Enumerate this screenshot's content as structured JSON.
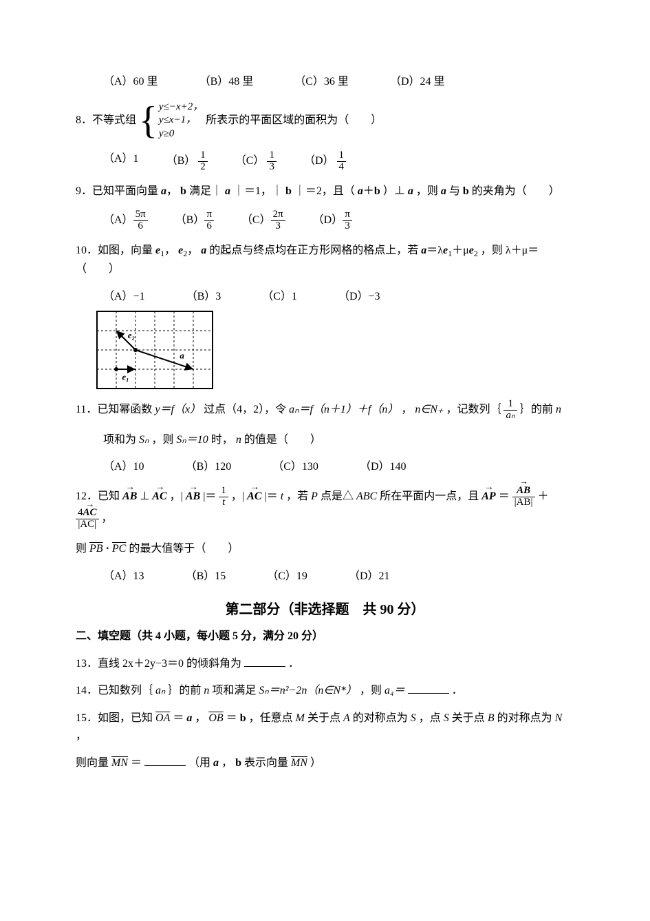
{
  "q7": {
    "options": {
      "A": "（A）60 里",
      "B": "（B）48 里",
      "C": "（C）36 里",
      "D": "（D）24 里"
    }
  },
  "q8": {
    "num": "8．不等式组",
    "sys": {
      "l1": "y≤−x+2，",
      "l2": "y≤x−1，",
      "l3": "y≥0"
    },
    "tail": "所表示的平面区域的面积为（　　）",
    "options": {
      "A_label": "（A）1",
      "B_label": "（B）",
      "B_num": "1",
      "B_den": "2",
      "C_label": "（C）",
      "C_num": "1",
      "C_den": "3",
      "D_label": "（D）",
      "D_num": "1",
      "D_den": "4"
    }
  },
  "q9": {
    "stem_a": "9．已知平面向量 ",
    "a": "a",
    "comma": "，",
    "b": "b",
    "stem_b": " 满足｜",
    "stem_c": "｜＝1，｜",
    "stem_d": "｜＝2，且（",
    "plus": "＋",
    "stem_e": "）⊥",
    "stem_f": "，则 ",
    "with": " 与 ",
    "stem_g": " 的夹角为（　　）",
    "options": {
      "A_label": "（A）",
      "A_num": "5π",
      "A_den": "6",
      "B_label": "（B）",
      "B_num": "π",
      "B_den": "6",
      "C_label": "（C）",
      "C_num": "2π",
      "C_den": "3",
      "D_label": "（D）",
      "D_num": "π",
      "D_den": "3"
    }
  },
  "q10": {
    "stem_a": "10．如图，向量 ",
    "e1": "e",
    "e1s": "1",
    "c1": "，",
    "e2": "e",
    "e2s": "2",
    "c2": "，",
    "a": "a",
    "stem_b": " 的起点与终点均在正方形网格的格点上，若 ",
    "eq_a": "a",
    "eq": "＝λ",
    "eq_e1": "e",
    "eq_e1s": "1",
    "plus": "＋μ",
    "eq_e2": "e",
    "eq_e2s": "2",
    "stem_c": "，则 λ＋μ＝（　　）",
    "options": {
      "A": "（A）−1",
      "B": "（B）3",
      "C": "（C）1",
      "D": "（D）−3"
    },
    "grid": {
      "cols": 6,
      "rows": 4,
      "cell": 28,
      "border_color": "#000",
      "grid_color": "#000",
      "labels": {
        "e1": "e₁",
        "e2": "e₂",
        "a": "a"
      },
      "arrows": [
        {
          "from": [
            1,
            3
          ],
          "to": [
            2,
            3
          ],
          "label": "e1",
          "lx": 1.3,
          "ly": 3.55
        },
        {
          "from": [
            2,
            2
          ],
          "to": [
            1,
            1
          ],
          "label": "e2",
          "lx": 1.6,
          "ly": 1.4
        },
        {
          "from": [
            2,
            2
          ],
          "to": [
            5,
            3
          ],
          "label": "a",
          "lx": 4.3,
          "ly": 2.45
        }
      ]
    }
  },
  "q11": {
    "stem_a": "11．已知幂函数 ",
    "yfx": "y＝f（x）",
    "stem_b": " 过点（4，2），令 ",
    "an": "aₙ＝f（n＋1）＋f（n）",
    "stem_c": "，",
    "nin": "n∈N₊",
    "stem_d": "，记数列｛",
    "fr_num": "1",
    "fr_den": "aₙ",
    "stem_e": "｝的前 ",
    "nitem": "n",
    "line2_a": "项和为 ",
    "Sn": "Sₙ",
    "line2_b": "，则 ",
    "Sn10": "Sₙ＝10",
    "line2_c": " 时，",
    "nval": "n",
    "line2_d": " 的值是（　　）",
    "options": {
      "A": "（A）10",
      "B": "（B）120",
      "C": "（C）130",
      "D": "（D）140"
    }
  },
  "q12": {
    "stem_a": "12．已知",
    "AB": "AB",
    "perp": "⊥",
    "AC": "AC",
    "c1": "，|",
    "ABm": "AB",
    "mid1": "|＝",
    "fr1n": "1",
    "fr1d": "t",
    "c2": "，|",
    "ACm": "AC",
    "mid2": "|＝",
    "t": "t",
    "stem_b": "，若 ",
    "P": "P",
    "stem_c": " 点是△",
    "ABC": "ABC",
    "stem_d": " 所在平面内一点，且",
    "AP": "AP",
    "eq": "＝",
    "f2n": "AB",
    "f2d": "|AB|",
    "plus": "＋",
    "four": "4",
    "f3n": "AC",
    "f3d": "|AC|",
    "comma": "，",
    "line2_a": "则 ",
    "PB": "PB",
    "dot": "·",
    "PC": "PC",
    "line2_b": " 的最大值等于（　　）",
    "options": {
      "A": "（A）13",
      "B": "（B）15",
      "C": "（C）19",
      "D": "（D）21"
    }
  },
  "part2_title": "第二部分（非选择题　共 90 分）",
  "fill_header": "二、填空题（共 4 小题，每小题 5 分，满分 20 分）",
  "q13": {
    "stem": "13．直线 2x＋2y−3＝0 的倾斜角为",
    "tail": "．"
  },
  "q14": {
    "stem_a": "14．已知数列｛",
    "an": "aₙ",
    "stem_b": "｝的前 ",
    "n": "n",
    "stem_c": " 项和满足 ",
    "Sn": "Sₙ＝n²−2n（n∈N*）",
    "stem_d": "，则 ",
    "a4": "a₄＝",
    "tail": "．"
  },
  "q15": {
    "stem_a": "15．如图，已知 ",
    "OA": "OA",
    "eqa": " ＝",
    "a": "a",
    "c1": "，",
    "OB": "OB",
    "eqb": " ＝",
    "b": "b",
    "stem_b": "，任意点 ",
    "M": "M",
    "stem_c": " 关于点 ",
    "A": "A",
    "stem_d": " 的对称点为 ",
    "S": "S",
    "stem_e": "，点 ",
    "S2": "S",
    "stem_f": " 关于点 ",
    "B": "B",
    "stem_g": " 的对称点为 ",
    "N": "N",
    "stem_h": "，",
    "line2_a": "则向量 ",
    "MN": "MN",
    "line2_b": " ＝",
    "line2_c": "（用 ",
    "a2": "a",
    "c2": "，",
    "b2": "b",
    "line2_d": " 表示向量 ",
    "MN2": "MN",
    "line2_e": "）"
  }
}
